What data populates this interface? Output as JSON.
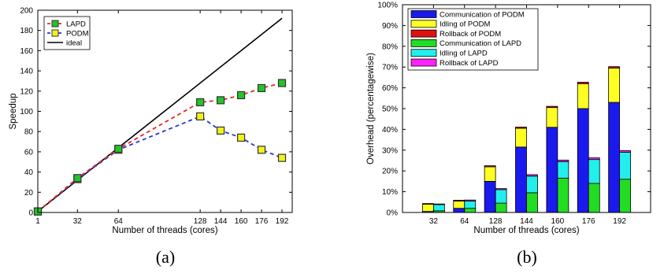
{
  "panels": [
    {
      "caption": "(a)",
      "chart_data": {
        "type": "line",
        "xlabel": "Number of threads (cores)",
        "ylabel": "Speedup",
        "xticks": [
          1,
          32,
          64,
          128,
          144,
          160,
          176,
          192
        ],
        "yticks": [
          0,
          20,
          40,
          60,
          80,
          100,
          120,
          140,
          160,
          180,
          200
        ],
        "xlim": [
          1,
          200
        ],
        "ylim": [
          0,
          200
        ],
        "grid": false,
        "legend_position": "top-left",
        "series": [
          {
            "name": "LAPD",
            "color": "#e8251f",
            "marker_fill": "#22c42a",
            "dashed": true,
            "x": [
              1,
              32,
              64,
              128,
              144,
              160,
              176,
              192
            ],
            "y": [
              1,
              34,
              63,
              109,
              111,
              116,
              123,
              128
            ]
          },
          {
            "name": "PODM",
            "color": "#2438d6",
            "marker_fill": "#f2f21a",
            "dashed": true,
            "x": [
              1,
              32,
              64,
              128,
              144,
              160,
              176,
              192
            ],
            "y": [
              1,
              33,
              62,
              95,
              81,
              74,
              62,
              54
            ]
          },
          {
            "name": "ideal",
            "color": "#000000",
            "marker_fill": "",
            "dashed": false,
            "x": [
              1,
              192
            ],
            "y": [
              1,
              192
            ]
          }
        ]
      }
    },
    {
      "caption": "(b)",
      "chart_data": {
        "type": "bar",
        "stacked": true,
        "xlabel": "Number of threads (cores)",
        "ylabel": "Overhead (percentagewise)",
        "categories": [
          "32",
          "64",
          "128",
          "144",
          "160",
          "176",
          "192"
        ],
        "yticks": [
          "0%",
          "10%",
          "20%",
          "30%",
          "40%",
          "50%",
          "60%",
          "70%",
          "80%",
          "90%",
          "100%"
        ],
        "ylim": [
          0,
          100
        ],
        "grid": false,
        "legend_position": "top-left",
        "groups": [
          {
            "name": "PODM",
            "series": [
              {
                "name": "Communication of PODM",
                "color": "#1a1aee",
                "values": [
                  0.5,
                  2,
                  15,
                  31.5,
                  41,
                  50,
                  53
                ]
              },
              {
                "name": "Idling of PODM",
                "color": "#ffff22",
                "values": [
                  3.5,
                  3.5,
                  7,
                  9,
                  9.5,
                  12,
                  16.5
                ]
              },
              {
                "name": "Rollback of PODM",
                "color": "#dd1111",
                "values": [
                  0.3,
                  0.4,
                  0.5,
                  0.6,
                  0.6,
                  0.7,
                  0.7
                ]
              }
            ]
          },
          {
            "name": "LAPD",
            "series": [
              {
                "name": "Communication of LAPD",
                "color": "#22dd22",
                "values": [
                  0.8,
                  2,
                  4.5,
                  9.5,
                  16.5,
                  14,
                  16
                ]
              },
              {
                "name": "Idling of LAPD",
                "color": "#22eeee",
                "values": [
                  3,
                  3.5,
                  6.5,
                  8,
                  8,
                  11.5,
                  13
                ]
              },
              {
                "name": "Rollback of LAPD",
                "color": "#ff22ff",
                "values": [
                  0.3,
                  0.5,
                  0.5,
                  0.7,
                  0.7,
                  0.8,
                  0.8
                ]
              }
            ]
          }
        ]
      }
    }
  ]
}
